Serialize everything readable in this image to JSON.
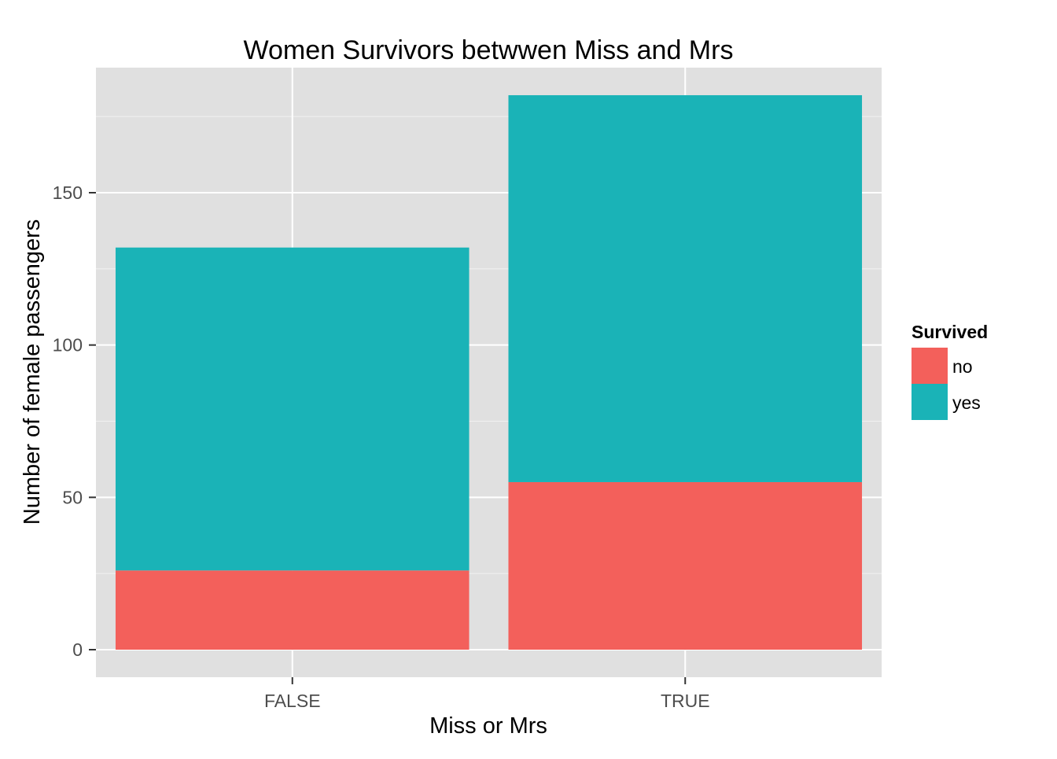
{
  "chart_data": {
    "type": "bar",
    "stacked": true,
    "title": "Women Survivors betwwen Miss and Mrs",
    "xlabel": "Miss or Mrs",
    "ylabel": "Number of female passengers",
    "categories": [
      "FALSE",
      "TRUE"
    ],
    "series": [
      {
        "name": "no",
        "values": [
          26,
          55
        ],
        "color": "#F3605B"
      },
      {
        "name": "yes",
        "values": [
          106,
          127
        ],
        "color": "#1AB3B7"
      }
    ],
    "ylim": [
      0,
      190
    ],
    "yticks": [
      0,
      50,
      100,
      150
    ],
    "ytick_labels": [
      "0",
      "50",
      "100",
      "150"
    ],
    "grid": true,
    "legend": {
      "title": "Survived",
      "position": "right"
    },
    "panel_background": "#E0E0E0",
    "grid_color": "#FFFFFF"
  }
}
